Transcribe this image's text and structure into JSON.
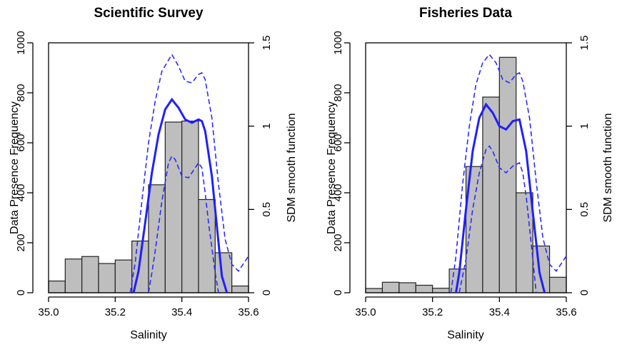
{
  "chart_data": [
    {
      "type": "bar",
      "title": "Scientific Survey",
      "xlabel": "Salinity",
      "ylabel": "Data Presence Frequency",
      "y2label": "SDM smooth function",
      "xlim": [
        35.0,
        35.6
      ],
      "ylim": [
        0,
        1000
      ],
      "y2lim": [
        0,
        1.5
      ],
      "xticks": [
        "35.0",
        "35.2",
        "35.4",
        "35.6"
      ],
      "yticks": [
        "0",
        "200",
        "400",
        "600",
        "800",
        "1000"
      ],
      "y2ticks": [
        "0",
        "0.5",
        "1",
        "1.5"
      ],
      "bin_width": 0.05,
      "bin_starts": [
        35.0,
        35.05,
        35.1,
        35.15,
        35.2,
        35.25,
        35.3,
        35.35,
        35.4,
        35.45,
        35.5,
        35.55
      ],
      "values": [
        47,
        135,
        145,
        117,
        131,
        207,
        432,
        683,
        687,
        373,
        160,
        27
      ],
      "smooth": {
        "x": [
          35.255,
          35.27,
          35.29,
          35.31,
          35.33,
          35.35,
          35.37,
          35.39,
          35.41,
          35.43,
          35.45,
          35.46,
          35.47,
          35.49,
          35.51,
          35.52,
          35.535
        ],
        "y": [
          0,
          0.13,
          0.42,
          0.72,
          0.95,
          1.1,
          1.16,
          1.11,
          1.04,
          1.02,
          1.04,
          1.03,
          0.97,
          0.7,
          0.3,
          0.1,
          0
        ]
      },
      "upper_ci": {
        "x": [
          35.245,
          35.26,
          35.28,
          35.3,
          35.32,
          35.34,
          35.37,
          35.39,
          35.41,
          35.43,
          35.45,
          35.46,
          35.47,
          35.49,
          35.51,
          35.53,
          35.55,
          35.57,
          35.6
        ],
        "y": [
          0,
          0.18,
          0.55,
          0.9,
          1.15,
          1.33,
          1.43,
          1.36,
          1.27,
          1.26,
          1.31,
          1.32,
          1.28,
          1.05,
          0.65,
          0.32,
          0.17,
          0.13,
          0.22
        ]
      },
      "lower_ci": {
        "x": [
          35.3,
          35.31,
          35.32,
          35.34,
          35.36,
          35.37,
          35.38,
          35.4,
          35.42,
          35.43,
          35.45,
          35.46,
          35.47,
          35.48,
          35.5,
          35.51
        ],
        "y": [
          0,
          0.12,
          0.25,
          0.55,
          0.78,
          0.82,
          0.8,
          0.7,
          0.69,
          0.72,
          0.78,
          0.75,
          0.6,
          0.42,
          0.12,
          0
        ]
      }
    },
    {
      "type": "bar",
      "title": "Fisheries Data",
      "xlabel": "Salinity",
      "ylabel": "Data Presence Frequency",
      "y2label": "SDM smooth function",
      "xlim": [
        35.0,
        35.6
      ],
      "ylim": [
        0,
        1000
      ],
      "y2lim": [
        0,
        1.5
      ],
      "xticks": [
        "35.0",
        "35.2",
        "35.4",
        "35.6"
      ],
      "yticks": [
        "0",
        "200",
        "400",
        "600",
        "800",
        "1000"
      ],
      "y2ticks": [
        "0",
        "0.5",
        "1",
        "1.5"
      ],
      "bin_width": 0.05,
      "bin_starts": [
        35.0,
        35.05,
        35.1,
        35.15,
        35.2,
        35.25,
        35.3,
        35.35,
        35.4,
        35.45,
        35.5,
        35.55
      ],
      "values": [
        17,
        42,
        40,
        30,
        18,
        95,
        505,
        783,
        942,
        400,
        187,
        62
      ],
      "smooth": {
        "x": [
          35.27,
          35.28,
          35.3,
          35.32,
          35.34,
          35.36,
          35.38,
          35.4,
          35.42,
          35.44,
          35.46,
          35.48,
          35.5,
          35.52,
          35.535
        ],
        "y": [
          0,
          0.12,
          0.5,
          0.85,
          1.05,
          1.13,
          1.08,
          1.0,
          0.98,
          1.03,
          1.04,
          0.85,
          0.48,
          0.12,
          0
        ]
      },
      "upper_ci": {
        "x": [
          35.255,
          35.27,
          35.29,
          35.31,
          35.33,
          35.35,
          35.37,
          35.39,
          35.41,
          35.43,
          35.45,
          35.46,
          35.47,
          35.49,
          35.51,
          35.53,
          35.55,
          35.57,
          35.6
        ],
        "y": [
          0,
          0.22,
          0.65,
          1.0,
          1.25,
          1.38,
          1.43,
          1.38,
          1.28,
          1.26,
          1.31,
          1.32,
          1.27,
          1.05,
          0.67,
          0.33,
          0.17,
          0.13,
          0.22
        ]
      },
      "lower_ci": {
        "x": [
          35.28,
          35.3,
          35.32,
          35.34,
          35.36,
          35.37,
          35.38,
          35.4,
          35.42,
          35.44,
          35.46,
          35.47,
          35.48,
          35.5,
          35.51
        ],
        "y": [
          0,
          0.2,
          0.5,
          0.72,
          0.86,
          0.88,
          0.85,
          0.75,
          0.72,
          0.76,
          0.78,
          0.72,
          0.58,
          0.2,
          0
        ]
      }
    }
  ]
}
